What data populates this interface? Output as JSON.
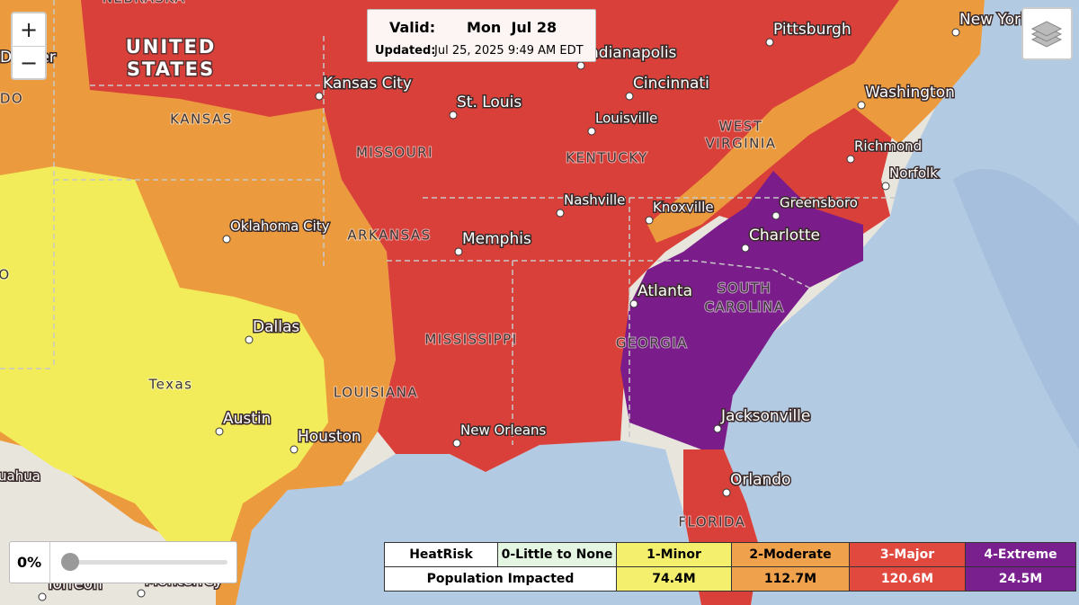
{
  "controls": {
    "zoom_in": "+",
    "zoom_out": "−",
    "opacity": "0%"
  },
  "info": {
    "valid_label": "Valid:",
    "valid_date": "Mon  Jul 28",
    "updated_label": "Updated:",
    "updated_date": "Jul 25, 2025 9:49 AM EDT"
  },
  "legend": {
    "header": [
      "HeatRisk",
      "0-Little to None",
      "1-Minor",
      "2-Moderate",
      "3-Major",
      "4-Extreme"
    ],
    "row_label": "Population Impacted",
    "population": [
      "74.4M",
      "112.7M",
      "120.6M",
      "24.5M"
    ]
  },
  "map": {
    "country_label": [
      "UNITED",
      "STATES"
    ],
    "states": [
      [
        "KANSAS"
      ],
      [
        "MISSOURI"
      ],
      [
        "KENTUCKY"
      ],
      [
        "WEST",
        "VIRGINIA"
      ],
      [
        "ARKANSAS"
      ],
      [
        "MISSISSIPPI"
      ],
      [
        "LOUISIANA"
      ],
      [
        "Texas"
      ],
      [
        "GEORGIA"
      ],
      [
        "SOUTH",
        "CAROLINA"
      ],
      [
        "FLORIDA"
      ],
      [
        "NEBRASKA"
      ],
      [
        "DO"
      ],
      [
        "O"
      ]
    ],
    "cities": [
      "Kansas City",
      "St. Louis",
      "Indianapolis",
      "Cincinnati",
      "Louisville",
      "Pittsburgh",
      "New York",
      "Washington",
      "Richmond",
      "Norfolk",
      "Greensboro",
      "Charlotte",
      "Knoxville",
      "Nashville",
      "Memphis",
      "Oklahoma City",
      "Dallas",
      "Austin",
      "Houston",
      "New Orleans",
      "Atlanta",
      "Jacksonville",
      "Orlando",
      "Torreon",
      "Monterrey"
    ],
    "partial_labels": [
      "Denver",
      "uahua"
    ]
  }
}
